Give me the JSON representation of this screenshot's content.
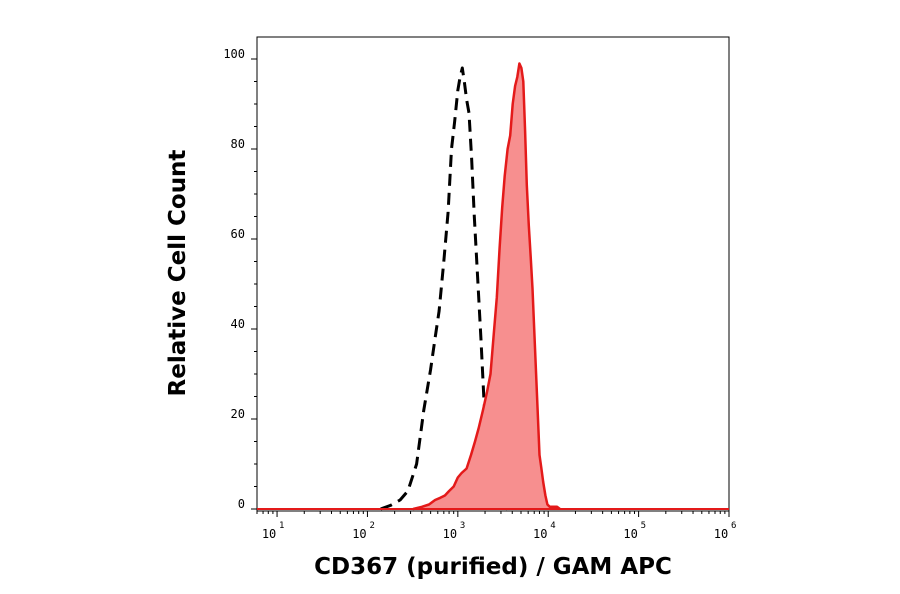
{
  "chart_data": {
    "type": "area",
    "xlabel": "CD367 (purified) / GAM APC",
    "ylabel": "Relative Cell Count",
    "x_scale": "log",
    "xlim": [
      6,
      1000000
    ],
    "ylim": [
      0,
      100
    ],
    "x_ticks": [
      {
        "base": "10",
        "exp": "1",
        "value": 10
      },
      {
        "base": "10",
        "exp": "2",
        "value": 100
      },
      {
        "base": "10",
        "exp": "3",
        "value": 1000
      },
      {
        "base": "10",
        "exp": "4",
        "value": 10000
      },
      {
        "base": "10",
        "exp": "5",
        "value": 100000
      },
      {
        "base": "10",
        "exp": "6",
        "value": 1000000
      }
    ],
    "y_ticks": [
      "0",
      "20",
      "40",
      "60",
      "80",
      "100"
    ],
    "grid": false,
    "legend": "none",
    "series": [
      {
        "style": "dashed-black",
        "color": "#000000",
        "x": [
          140,
          180,
          230,
          280,
          350,
          420,
          500,
          560,
          620,
          700,
          780,
          850,
          920,
          1000,
          1060,
          1120,
          1180,
          1250,
          1330,
          1420,
          1520,
          1650,
          1800,
          1950,
          2150,
          2350,
          2550,
          2800,
          3100,
          3500
        ],
        "y": [
          0,
          0.8,
          2,
          4,
          10,
          22,
          31,
          38,
          44,
          55,
          66,
          80,
          86,
          93,
          96,
          98,
          95,
          91,
          88,
          78,
          65,
          52,
          38,
          24,
          14,
          5,
          1,
          0.5,
          0.5,
          0
        ]
      },
      {
        "style": "filled-red",
        "color": "#e41a1a",
        "fill": "#f78f8f",
        "x": [
          320,
          400,
          480,
          560,
          640,
          720,
          800,
          900,
          1000,
          1100,
          1250,
          1400,
          1550,
          1700,
          1900,
          2100,
          2300,
          2500,
          2700,
          2900,
          3100,
          3300,
          3550,
          3800,
          4050,
          4300,
          4550,
          4800,
          5050,
          5300,
          5550,
          5800,
          6100,
          6400,
          6700,
          7000,
          7350,
          7700,
          8000,
          8400,
          8800,
          9300,
          9800,
          10400,
          11000,
          11700,
          12500,
          13500
        ],
        "y": [
          0,
          0.5,
          1,
          2,
          2.5,
          3,
          4,
          5,
          7,
          8,
          9,
          12,
          15,
          18,
          22,
          26,
          30,
          39,
          47,
          58,
          67,
          74,
          80,
          83,
          90,
          94,
          96,
          99,
          98,
          95,
          84,
          72,
          63,
          56,
          49,
          40,
          30,
          20,
          12,
          9,
          6,
          3,
          1,
          0.5,
          0.5,
          0.5,
          0.5,
          0
        ]
      }
    ]
  }
}
